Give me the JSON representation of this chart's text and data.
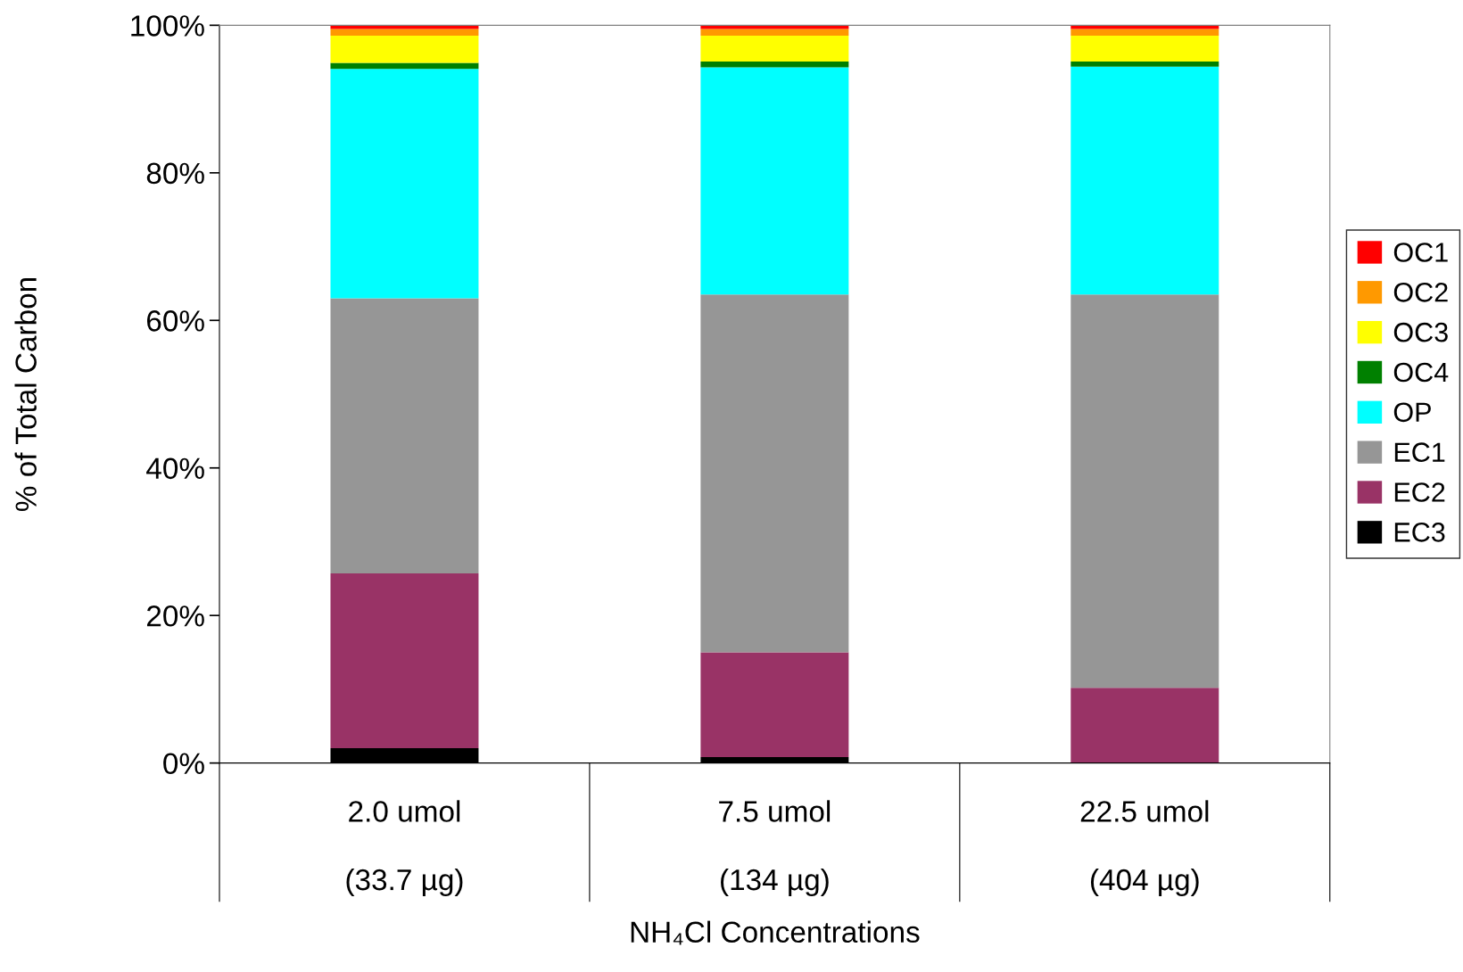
{
  "chart_data": {
    "type": "bar",
    "stacked": true,
    "xlabel": "NH₄Cl Concentrations",
    "ylabel": "% of Total Carbon",
    "categories": [
      "2.0 umol\n\n(33.7 µg)",
      "7.5 umol\n\n(134 µg)",
      "22.5 umol\n\n(404 µg)"
    ],
    "series": [
      {
        "name": "EC3",
        "color": "#000000",
        "values": [
          2.0,
          0.8,
          0
        ]
      },
      {
        "name": "EC2",
        "color": "#993366",
        "values": [
          23.7,
          14.2,
          10.2
        ]
      },
      {
        "name": "EC1",
        "color": "#969696",
        "values": [
          37.3,
          48.5,
          53.3
        ]
      },
      {
        "name": "OP",
        "color": "#00ffff",
        "values": [
          31.1,
          30.8,
          30.9
        ]
      },
      {
        "name": "OC4",
        "color": "#008000",
        "values": [
          0.8,
          0.8,
          0.7
        ]
      },
      {
        "name": "OC3",
        "color": "#ffff00",
        "values": [
          3.7,
          3.5,
          3.5
        ]
      },
      {
        "name": "OC2",
        "color": "#ff9900",
        "values": [
          0.9,
          0.9,
          0.9
        ]
      },
      {
        "name": "OC1",
        "color": "#ff0000",
        "values": [
          0.5,
          0.5,
          0.5
        ]
      }
    ],
    "ylim": [
      0,
      100
    ],
    "yticks": [
      {
        "value": 0,
        "label": "0%"
      },
      {
        "value": 20,
        "label": "20%"
      },
      {
        "value": 40,
        "label": "40%"
      },
      {
        "value": 60,
        "label": "60%"
      },
      {
        "value": 80,
        "label": "80%"
      },
      {
        "value": 100,
        "label": "100%"
      }
    ],
    "grid": false,
    "legend": "right"
  }
}
